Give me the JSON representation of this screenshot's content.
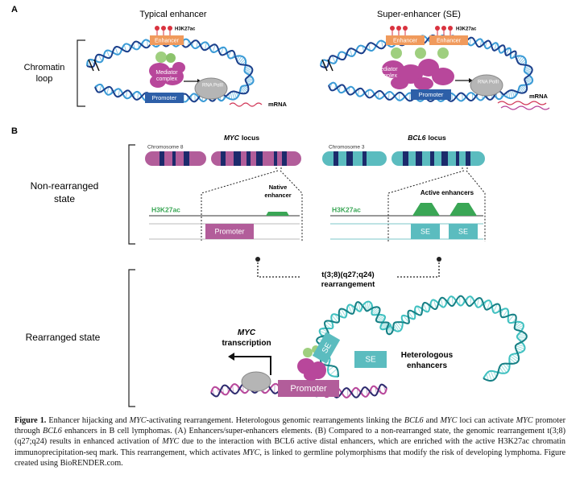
{
  "panel_a": {
    "label": "A",
    "typical_title": "Typical enhancer",
    "super_title": "Super-enhancer (SE)",
    "side_label": [
      "Chromatin",
      "loop"
    ],
    "typical": {
      "mark": "H3K27ac",
      "enhancer": "Enhancer",
      "mediator": [
        "Mediator",
        "complex"
      ],
      "polymerase": "RNA PolII",
      "promoter": "Promoter",
      "transcript": "mRNA"
    },
    "super": {
      "mark": "H3K27ac",
      "enhancers": [
        "Enhancer",
        "Enhancer"
      ],
      "mediator": [
        "Mediator",
        "complex"
      ],
      "polymerase": "RNA PolII",
      "promoter": "Promoter",
      "transcript": "mRNA"
    }
  },
  "panel_b": {
    "label": "B",
    "myc_locus": {
      "gene": "MYC",
      "label": "locus"
    },
    "bcl6_locus": {
      "gene": "BCL6",
      "label": "locus"
    },
    "chromosome_8": "Chromosome 8",
    "chromosome_3": "Chromosome 3",
    "upper_state": [
      "Non-rearranged",
      "state"
    ],
    "myc_track": {
      "mark": "H3K27ac",
      "enhancer": [
        "Native",
        "enhancer"
      ],
      "promoter": "Promoter"
    },
    "bcl6_track": {
      "mark": "H3K27ac",
      "enhancers": "Active enhancers",
      "elements": [
        "SE",
        "SE"
      ]
    },
    "rearrangement": [
      "t(3;8)(q27;q24)",
      "rearrangement"
    ],
    "lower_state": "Rearranged state",
    "transcription": [
      "MYC",
      "transcription"
    ],
    "rearranged": {
      "elements": [
        "SE",
        "SE"
      ],
      "enhancers": [
        "Heterologous",
        "enhancers"
      ],
      "promoter": "Promoter"
    }
  },
  "caption": {
    "label": "Figure 1.",
    "runs": [
      " Enhancer hijacking and ",
      "MYC",
      "-activating rearrangement. Heterologous genomic rearrangements linking the ",
      "BCL6",
      " and ",
      "MYC",
      " loci can activate ",
      "MYC",
      " promoter through ",
      "BCL6",
      " enhancers in B cell lymphomas. (A) Enhancers/super-enhancers elements. (B) Compared to a non-rearranged state, the genomic rearrangement t(3;8)(q27;q24) results in enhanced activation of ",
      "MYC",
      " due to the interaction with BCL6 active distal enhancers, which are enriched with the active H3K27ac chromatin immunoprecipitation-seq mark. This rearrangement, which activates ",
      "MYC",
      ", is linked to germline polymorphisms that modify the risk of developing lymphoma. Figure created using BioRENDER.com."
    ]
  }
}
